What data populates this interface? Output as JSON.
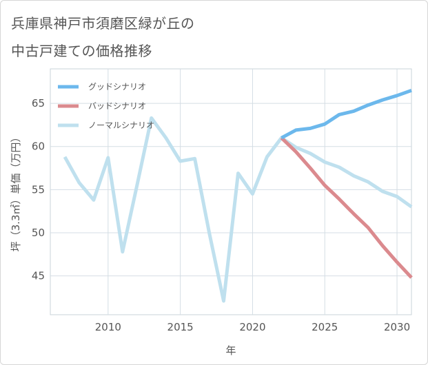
{
  "page_title": {
    "line1": "兵庫県神戸市須磨区緑が丘の",
    "line2": "中古戸建ての価格推移"
  },
  "colors": {
    "good": "#6cb8ec",
    "bad": "#db8a8e",
    "normal": "#bfe0ee",
    "grid": "#d4dde4",
    "text": "#555555"
  },
  "chart_data": {
    "type": "line",
    "title": "兵庫県神戸市須磨区緑が丘の中古戸建ての価格推移",
    "xlabel": "年",
    "ylabel": "坪（3.3㎡）単価（万円）",
    "xlim": [
      2006,
      2031
    ],
    "ylim": [
      40.5,
      69
    ],
    "xticks": [
      2010,
      2015,
      2020,
      2025,
      2030
    ],
    "yticks": [
      45,
      50,
      55,
      60,
      65
    ],
    "legend_position": "top-left",
    "series": [
      {
        "name": "グッドシナリオ",
        "color": "#6cb8ec",
        "x": [
          2022,
          2023,
          2024,
          2025,
          2026,
          2027,
          2028,
          2029,
          2030,
          2031
        ],
        "y": [
          61.0,
          61.9,
          62.1,
          62.6,
          63.7,
          64.1,
          64.8,
          65.4,
          65.9,
          66.5
        ]
      },
      {
        "name": "バッドシナリオ",
        "color": "#db8a8e",
        "x": [
          2022,
          2023,
          2024,
          2025,
          2026,
          2027,
          2028,
          2029,
          2030,
          2031
        ],
        "y": [
          61.0,
          59.4,
          57.5,
          55.5,
          53.9,
          52.2,
          50.6,
          48.5,
          46.6,
          44.8
        ]
      },
      {
        "name": "ノーマルシナリオ",
        "color": "#bfe0ee",
        "x": [
          2007,
          2008,
          2009,
          2010,
          2011,
          2012,
          2013,
          2014,
          2015,
          2016,
          2017,
          2018,
          2019,
          2020,
          2021,
          2022,
          2023,
          2024,
          2025,
          2026,
          2027,
          2028,
          2029,
          2030,
          2031
        ],
        "y": [
          58.8,
          55.8,
          53.8,
          58.7,
          47.8,
          55.5,
          63.3,
          61.0,
          58.3,
          58.6,
          50.0,
          42.1,
          56.9,
          54.5,
          58.8,
          61.0,
          59.9,
          59.2,
          58.2,
          57.6,
          56.6,
          55.9,
          54.8,
          54.2,
          53.0
        ]
      }
    ]
  }
}
